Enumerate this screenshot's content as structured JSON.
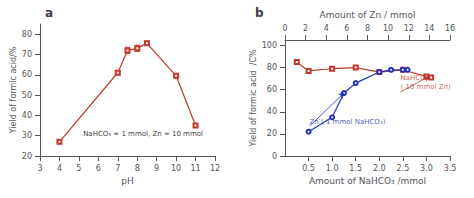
{
  "chart_data": [
    {
      "type": "line",
      "title": "a",
      "x": [
        4,
        7,
        7.5,
        8,
        8.5,
        10,
        11
      ],
      "values": [
        27,
        61,
        72,
        73,
        75.5,
        59.5,
        35
      ],
      "yerr": [
        1.0,
        1.0,
        1.5,
        1.5,
        1.0,
        1.0,
        1.0
      ],
      "color": "#c0392b",
      "marker": "square",
      "xlabel": "pH",
      "ylabel": "Yield of formic acid/%",
      "xlim": [
        3,
        12
      ],
      "ylim": [
        20,
        85
      ],
      "xticks": [
        3,
        4,
        5,
        6,
        7,
        8,
        9,
        10,
        11,
        12
      ],
      "yticks": [
        20,
        30,
        40,
        50,
        60,
        70,
        80
      ],
      "grid": false,
      "annotations": [
        {
          "text": "NaHCO₃ = 1 mmol, Zn = 10 mmol",
          "x": 8.3,
          "y": 29
        }
      ]
    },
    {
      "type": "line",
      "title": "b",
      "series": [
        {
          "x": [
            0.25,
            0.5,
            1.0,
            1.5,
            2.0,
            2.5,
            3.0,
            3.1
          ],
          "values": [
            85,
            77,
            79,
            80,
            76,
            78,
            72,
            71
          ],
          "color": "#c0392b",
          "marker": "square"
        },
        {
          "x": [
            0.5,
            1.0,
            1.25,
            1.5,
            2.0,
            2.25,
            2.5,
            2.6
          ],
          "values": [
            22,
            35,
            57,
            66,
            76,
            78,
            78,
            78
          ],
          "color": "#2233bb",
          "marker": "circle"
        }
      ],
      "xlabel": "Amount of NaHCO₃ /mmol",
      "x2label": "Amount of Zn / mmol",
      "ylabel": "Yield of formic acid  /C%",
      "xlim": [
        0,
        3.5
      ],
      "x2lim": [
        0,
        16
      ],
      "ylim": [
        0,
        105
      ],
      "xticks": [
        0.5,
        {
          "value": 1,
          "label": "1.0"
        },
        1.5,
        {
          "value": 2,
          "label": "2.0"
        },
        2.5,
        {
          "value": 3,
          "label": "3.0"
        },
        3.5
      ],
      "x2ticks": [
        0,
        2,
        4,
        6,
        8,
        10,
        12,
        14,
        16
      ],
      "yticks": [
        0,
        20,
        40,
        60,
        80,
        100
      ],
      "grid": false,
      "annotations": [
        {
          "text": "NaHCO₃\n( 10 mmol Zn)",
          "x": 3.05,
          "y": 72,
          "text_x": 2.45,
          "text_y": 58,
          "color": "#c0392b"
        },
        {
          "text": "Zn ( 1 mmol NaHCO₃)",
          "x": 1.25,
          "y": 57,
          "text_x": 0.52,
          "text_y": 27,
          "color": "#2233bb"
        }
      ]
    }
  ]
}
